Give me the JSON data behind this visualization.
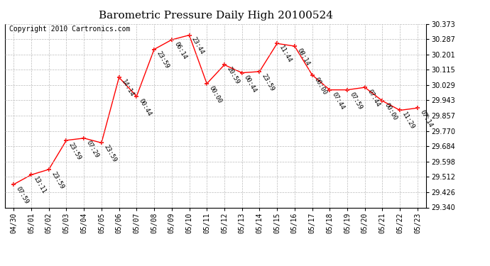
{
  "title": "Barometric Pressure Daily High 20100524",
  "copyright": "Copyright 2010 Cartronics.com",
  "x_labels": [
    "04/30",
    "05/01",
    "05/02",
    "05/03",
    "05/04",
    "05/05",
    "05/06",
    "05/07",
    "05/08",
    "05/09",
    "05/10",
    "05/11",
    "05/12",
    "05/13",
    "05/14",
    "05/15",
    "05/16",
    "05/17",
    "05/18",
    "05/19",
    "05/20",
    "05/21",
    "05/22",
    "05/23"
  ],
  "y_values": [
    29.47,
    29.524,
    29.554,
    29.718,
    29.73,
    29.704,
    30.072,
    29.966,
    30.23,
    30.284,
    30.31,
    30.037,
    30.143,
    30.098,
    30.105,
    30.263,
    30.248,
    30.086,
    30.002,
    30.002,
    30.016,
    29.94,
    29.887,
    29.9
  ],
  "time_labels": [
    "07:59",
    "13:11",
    "23:59",
    "23:59",
    "07:29",
    "23:59",
    "14:14",
    "00:44",
    "23:59",
    "06:14",
    "23:44",
    "00:00",
    "20:59",
    "00:44",
    "23:59",
    "11:44",
    "08:14",
    "00:00",
    "07:44",
    "07:59",
    "07:44",
    "00:00",
    "11:29",
    "07:14"
  ],
  "y_min": 29.34,
  "y_max": 30.373,
  "y_ticks": [
    29.34,
    29.426,
    29.512,
    29.598,
    29.684,
    29.77,
    29.857,
    29.943,
    30.029,
    30.115,
    30.201,
    30.287,
    30.373
  ],
  "line_color": "#FF0000",
  "marker_color": "#FF0000",
  "bg_color": "#FFFFFF",
  "grid_color": "#BBBBBB",
  "title_fontsize": 11,
  "copyright_fontsize": 7,
  "tick_fontsize": 7,
  "annotation_fontsize": 6.5
}
